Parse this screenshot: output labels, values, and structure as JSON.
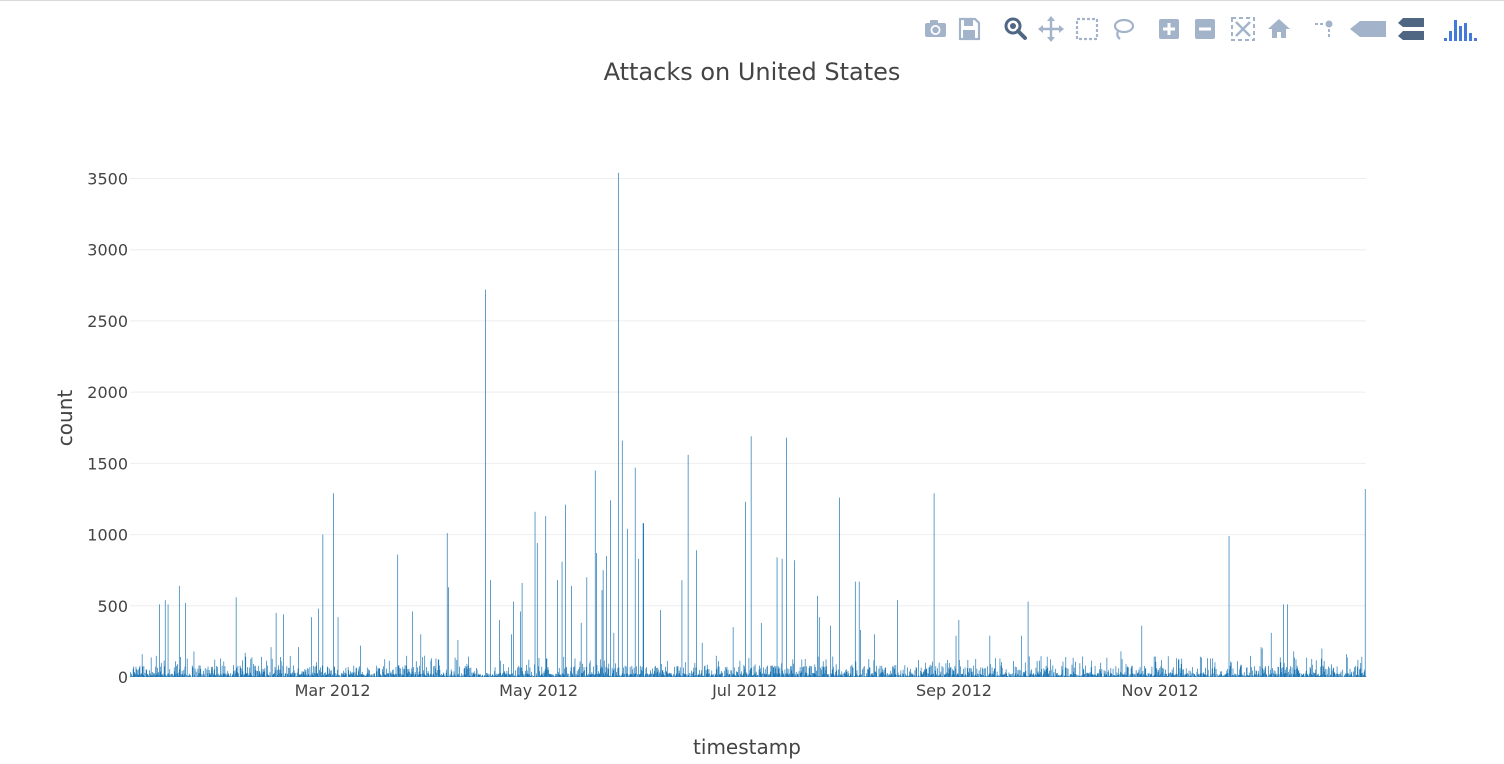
{
  "modebar": {
    "buttons": [
      {
        "name": "download-plot-icon",
        "title": "Download plot as a png"
      },
      {
        "name": "save-icon",
        "title": "Save and edit plot in cloud"
      },
      {
        "name": "zoom-icon",
        "title": "Zoom"
      },
      {
        "name": "pan-icon",
        "title": "Pan"
      },
      {
        "name": "box-select-icon",
        "title": "Box Select"
      },
      {
        "name": "lasso-select-icon",
        "title": "Lasso Select"
      },
      {
        "name": "zoom-in-icon",
        "title": "Zoom in"
      },
      {
        "name": "zoom-out-icon",
        "title": "Zoom out"
      },
      {
        "name": "autoscale-icon",
        "title": "Autoscale"
      },
      {
        "name": "reset-axes-icon",
        "title": "Reset axes"
      },
      {
        "name": "spike-lines-icon",
        "title": "Toggle Spike Lines"
      },
      {
        "name": "hover-closest-icon",
        "title": "Show closest data on hover"
      },
      {
        "name": "hover-compare-icon",
        "title": "Compare data on hover"
      },
      {
        "name": "plotly-logo-icon",
        "title": "Produced with Plotly"
      }
    ],
    "icon_color": "#a3b3c9",
    "active_color": "#506784",
    "logo_color": "#447adb"
  },
  "chart_data": {
    "type": "bar",
    "title": "Attacks on United States",
    "xlabel": "timestamp",
    "ylabel": "count",
    "x_range": [
      "2012-01-01",
      "2012-12-31"
    ],
    "ylim": [
      0,
      3700
    ],
    "yticks": [
      0,
      500,
      1000,
      1500,
      2000,
      2500,
      3000,
      3500
    ],
    "xticks": [
      {
        "date": "2012-03-01",
        "label": "Mar 2012"
      },
      {
        "date": "2012-05-01",
        "label": "May 2012"
      },
      {
        "date": "2012-07-01",
        "label": "Jul 2012"
      },
      {
        "date": "2012-09-01",
        "label": "Sep 2012"
      },
      {
        "date": "2012-11-01",
        "label": "Nov 2012"
      }
    ],
    "bar_color": "#1f77b4",
    "grid": true,
    "series": [
      {
        "peaks": [
          [
            "2012-01-04",
            160
          ],
          [
            "2012-01-09",
            510
          ],
          [
            "2012-01-11",
            540
          ],
          [
            "2012-01-12",
            510
          ],
          [
            "2012-01-15",
            640
          ],
          [
            "2012-01-17",
            520
          ],
          [
            "2012-01-19",
            180
          ],
          [
            "2012-01-27",
            130
          ],
          [
            "2012-02-01",
            560
          ],
          [
            "2012-02-04",
            170
          ],
          [
            "2012-02-11",
            210
          ],
          [
            "2012-02-13",
            450
          ],
          [
            "2012-02-15",
            440
          ],
          [
            "2012-02-19",
            210
          ],
          [
            "2012-02-23",
            420
          ],
          [
            "2012-02-25",
            480
          ],
          [
            "2012-02-27",
            1000
          ],
          [
            "2012-03-01",
            1290
          ],
          [
            "2012-03-02",
            420
          ],
          [
            "2012-03-09",
            220
          ],
          [
            "2012-03-20",
            860
          ],
          [
            "2012-03-24",
            460
          ],
          [
            "2012-03-27",
            300
          ],
          [
            "2012-04-03",
            1010
          ],
          [
            "2012-04-04",
            630
          ],
          [
            "2012-04-07",
            260
          ],
          [
            "2012-04-15",
            2720
          ],
          [
            "2012-04-16",
            680
          ],
          [
            "2012-04-19",
            400
          ],
          [
            "2012-04-22",
            300
          ],
          [
            "2012-04-23",
            530
          ],
          [
            "2012-04-25",
            460
          ],
          [
            "2012-04-26",
            660
          ],
          [
            "2012-04-29",
            1160
          ],
          [
            "2012-04-30",
            940
          ],
          [
            "2012-05-03",
            1130
          ],
          [
            "2012-05-06",
            680
          ],
          [
            "2012-05-07",
            810
          ],
          [
            "2012-05-08",
            1210
          ],
          [
            "2012-05-10",
            640
          ],
          [
            "2012-05-13",
            380
          ],
          [
            "2012-05-15",
            700
          ],
          [
            "2012-05-17",
            1450
          ],
          [
            "2012-05-18",
            870
          ],
          [
            "2012-05-19",
            610
          ],
          [
            "2012-05-20",
            750
          ],
          [
            "2012-05-21",
            850
          ],
          [
            "2012-05-22",
            1240
          ],
          [
            "2012-05-23",
            310
          ],
          [
            "2012-05-24",
            3540
          ],
          [
            "2012-05-25",
            1660
          ],
          [
            "2012-05-27",
            1040
          ],
          [
            "2012-05-29",
            1470
          ],
          [
            "2012-05-30",
            830
          ],
          [
            "2012-05-31",
            1080
          ],
          [
            "2012-06-01",
            1080
          ],
          [
            "2012-06-06",
            470
          ],
          [
            "2012-06-12",
            680
          ],
          [
            "2012-06-14",
            1560
          ],
          [
            "2012-06-16",
            890
          ],
          [
            "2012-06-18",
            240
          ],
          [
            "2012-06-27",
            350
          ],
          [
            "2012-07-01",
            1230
          ],
          [
            "2012-07-02",
            1690
          ],
          [
            "2012-07-05",
            380
          ],
          [
            "2012-07-10",
            840
          ],
          [
            "2012-07-12",
            830
          ],
          [
            "2012-07-13",
            1680
          ],
          [
            "2012-07-15",
            820
          ],
          [
            "2012-07-22",
            570
          ],
          [
            "2012-07-23",
            420
          ],
          [
            "2012-07-26",
            360
          ],
          [
            "2012-07-29",
            1260
          ],
          [
            "2012-08-02",
            670
          ],
          [
            "2012-08-03",
            670
          ],
          [
            "2012-08-04",
            330
          ],
          [
            "2012-08-08",
            300
          ],
          [
            "2012-08-15",
            540
          ],
          [
            "2012-08-26",
            1290
          ],
          [
            "2012-09-01",
            290
          ],
          [
            "2012-09-02",
            400
          ],
          [
            "2012-09-11",
            290
          ],
          [
            "2012-09-20",
            290
          ],
          [
            "2012-09-22",
            530
          ],
          [
            "2012-10-20",
            180
          ],
          [
            "2012-10-26",
            360
          ],
          [
            "2012-11-01",
            120
          ],
          [
            "2012-11-15",
            130
          ],
          [
            "2012-11-21",
            990
          ],
          [
            "2012-11-30",
            210
          ],
          [
            "2012-12-01",
            200
          ],
          [
            "2012-12-03",
            310
          ],
          [
            "2012-12-07",
            510
          ],
          [
            "2012-12-08",
            510
          ],
          [
            "2012-12-10",
            180
          ],
          [
            "2012-12-18",
            200
          ],
          [
            "2012-12-26",
            160
          ],
          [
            "2012-12-31",
            1320
          ]
        ]
      }
    ]
  }
}
